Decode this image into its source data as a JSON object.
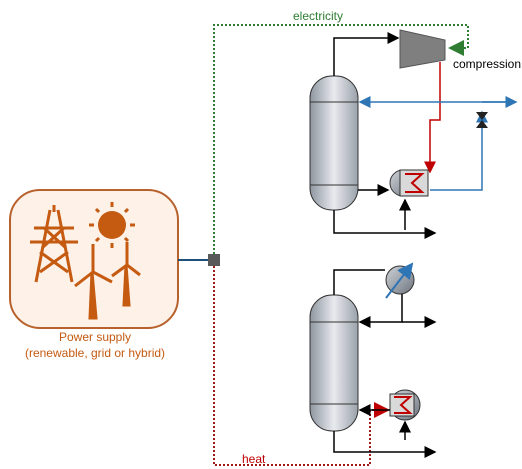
{
  "labels": {
    "electricity": "electricity",
    "compression": "compression",
    "power_supply_title": "Power supply",
    "power_supply_subtitle": "(renewable, grid or hybrid)",
    "heat": "heat"
  }
}
